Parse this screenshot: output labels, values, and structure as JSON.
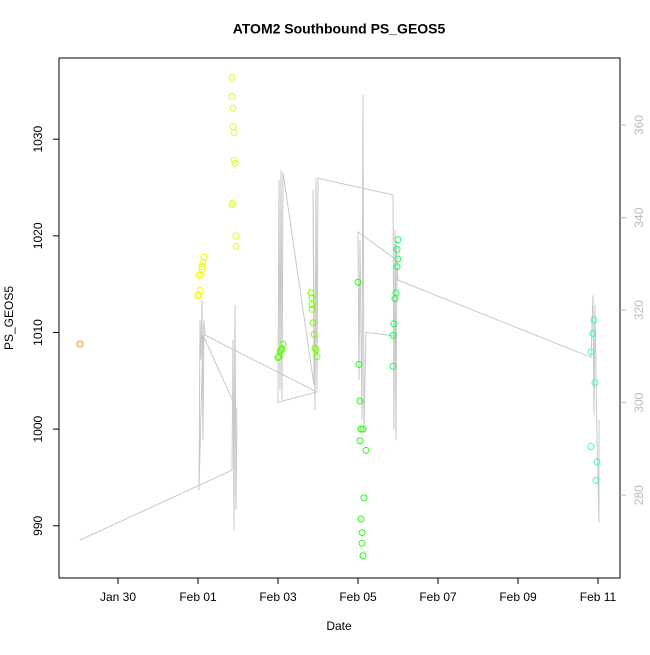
{
  "chart_data": {
    "type": "scatter",
    "title": "ATOM2 Southbound PS_GEOS5",
    "x_label": "Date",
    "y_label": "PS_GEOS5",
    "xlim": [
      28.525,
      42.55
    ],
    "xticks": [
      {
        "value": 30,
        "label": "Jan 30"
      },
      {
        "value": 32,
        "label": "Feb 01"
      },
      {
        "value": 34,
        "label": "Feb 03"
      },
      {
        "value": 36,
        "label": "Feb 05"
      },
      {
        "value": 38,
        "label": "Feb 07"
      },
      {
        "value": 40,
        "label": "Feb 09"
      },
      {
        "value": 42,
        "label": "Feb 11"
      }
    ],
    "ylim": [
      984.6,
      1038.4
    ],
    "yticks": [
      990,
      1000,
      1010,
      1020,
      1030
    ],
    "y2lim": [
      262.1,
      374.5
    ],
    "y2ticks": [
      280,
      300,
      320,
      340,
      360
    ],
    "series": [
      {
        "color": "#ff9900",
        "x": [
          29.05
        ],
        "values": [
          1008.8
        ]
      },
      {
        "color": "#eeff00",
        "x": [
          32,
          32.025,
          32.05,
          32.075,
          32.1,
          32.125,
          32.15,
          32.1,
          32.025
        ],
        "values": [
          1013.8,
          1013.9,
          1014.4,
          1016.0,
          1016.5,
          1017.3,
          1017.8,
          1016.8,
          1015.9
        ]
      },
      {
        "color": "#ddff22",
        "x": [
          32.85,
          32.85,
          32.875,
          32.875,
          32.9,
          32.9,
          32.925,
          32.85,
          32.875,
          32.95,
          32.95
        ],
        "values": [
          1036.4,
          1034.4,
          1033.2,
          1031.3,
          1030.7,
          1027.8,
          1027.5,
          1023.2,
          1023.4,
          1020.0,
          1018.9
        ]
      },
      {
        "color": "#55ff00",
        "x": [
          34.025,
          34.05,
          34.075,
          34.1,
          34.125,
          34
        ],
        "values": [
          1007.5,
          1008.0,
          1008.2,
          1008.3,
          1008.8,
          1007.4
        ]
      },
      {
        "color": "#77ff00",
        "x": [
          34.825,
          34.85,
          34.85,
          34.875,
          34.9,
          34.925,
          34.95,
          34.975,
          34.85
        ],
        "values": [
          1014.1,
          1013.6,
          1012.9,
          1011.0,
          1009.8,
          1008.4,
          1008.2,
          1007.5,
          1012.4
        ]
      },
      {
        "color": "#22ff11",
        "x": [
          36,
          36.025,
          36.05,
          36.05,
          36.075,
          36.2,
          36.15,
          36.075,
          36.1,
          36.1,
          36.125,
          36.125
        ],
        "values": [
          1015.2,
          1006.7,
          1002.9,
          998.8,
          1000.0,
          997.8,
          992.9,
          990.7,
          989.3,
          988.2,
          986.9,
          1000.0
        ]
      },
      {
        "color": "#11ff55",
        "x": [
          37.0,
          36.975,
          37.0,
          36.975,
          36.95,
          36.925,
          36.9,
          36.875,
          36.875
        ],
        "values": [
          1019.6,
          1018.6,
          1017.6,
          1016.8,
          1014.1,
          1013.5,
          1010.9,
          1009.7,
          1006.5
        ]
      },
      {
        "color": "#33ffbb",
        "x": [
          41.9,
          41.875,
          41.825,
          41.925,
          41.825,
          41.975,
          41.95
        ],
        "values": [
          1011.3,
          1009.9,
          1008.0,
          1004.8,
          998.2,
          996.6,
          994.7
        ]
      },
      {
        "color": "#c8c8c8",
        "axis": "y2",
        "x": [
          29.05,
          32.85,
          32.875,
          32.9,
          32.925,
          32.95,
          32.975,
          32.125,
          32.025,
          32.05,
          32.075,
          32.1,
          32.125,
          32.15,
          32.175,
          34.975,
          34,
          34.025,
          34.05,
          34.075,
          34.1,
          34.125,
          34.9,
          34.875,
          34.925,
          34.95,
          34.975,
          35,
          36.875,
          36.9,
          36.925,
          36.95,
          36.975,
          36,
          36.025,
          36.05,
          36.1,
          36.125,
          36.15,
          36.2,
          36.925,
          36.95,
          37,
          41.825,
          41.875,
          41.9,
          41.925,
          41.975,
          42.025,
          42.025
        ],
        "values": [
          270.3,
          285.4,
          313.5,
          272.4,
          321.1,
          276.8,
          298.4,
          314.6,
          281.1,
          317.8,
          309.2,
          322.2,
          291.9,
          317.8,
          314.6,
          302.3,
          300.1,
          348.1,
          302.7,
          350.3,
          300.5,
          349.8,
          303.8,
          346.0,
          298.4,
          348.5,
          302.7,
          348.5,
          344.9,
          294.1,
          337.3,
          291.9,
          330.8,
          336.9,
          304.9,
          335.1,
          296.2,
          366.5,
          294.1,
          315.2,
          314.4,
          335.1,
          326.5,
          309.8,
          323.2,
          297.3,
          321.1,
          291.9,
          274.0,
          296.2
        ]
      }
    ]
  }
}
